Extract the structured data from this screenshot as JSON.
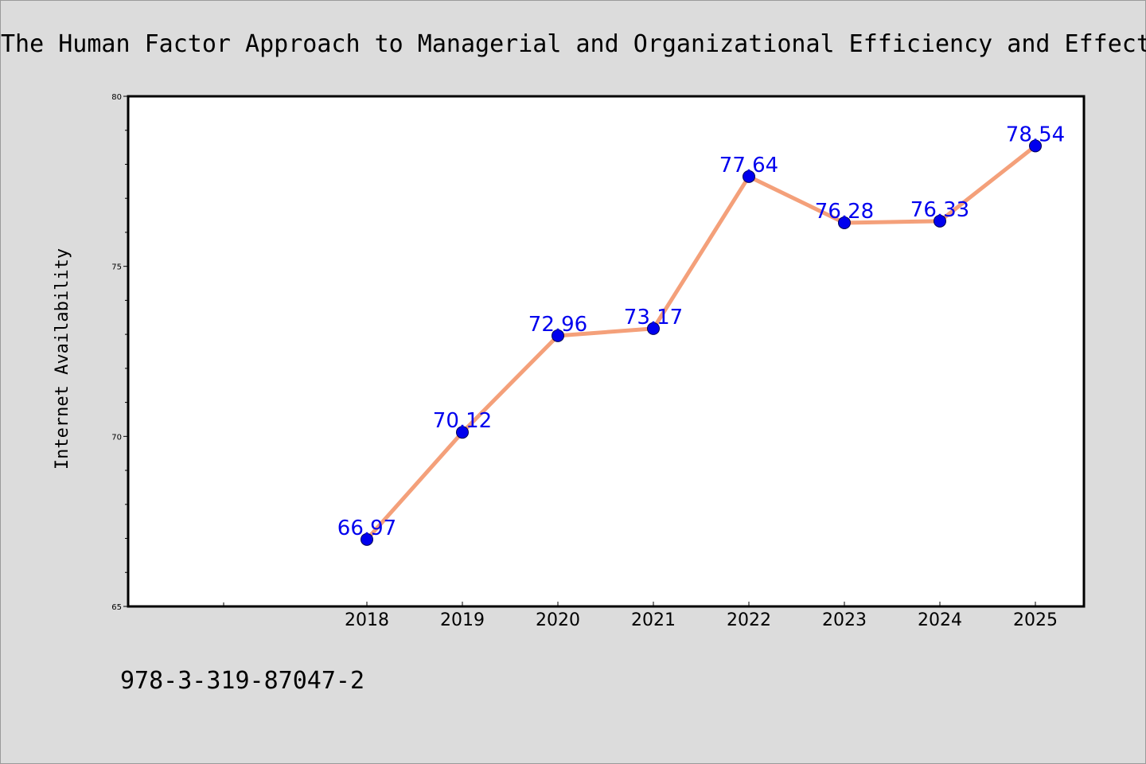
{
  "chart_data": {
    "type": "line",
    "title": "The Human Factor Approach to Managerial and Organizational Efficiency and Effectiveness",
    "xlabel": "",
    "ylabel": "Internet Availability",
    "categories": [
      "2018",
      "2019",
      "2020",
      "2021",
      "2022",
      "2023",
      "2024",
      "2025"
    ],
    "series": [
      {
        "values": [
          66.97,
          70.12,
          72.96,
          73.17,
          77.64,
          76.28,
          76.33,
          78.54
        ]
      }
    ],
    "data_labels": [
      "66.97",
      "70.12",
      "72.96",
      "73.17",
      "77.64",
      "76.28",
      "76.33",
      "78.54"
    ],
    "ylim": [
      65,
      80
    ],
    "yticks": [
      65,
      70,
      75,
      80
    ],
    "ytick_labels": [
      "65",
      "70",
      "75",
      "80"
    ],
    "y_minor_step": 1,
    "x_extra_ticks_left": 2,
    "grid": false,
    "legend": "none",
    "colors": {
      "line": "#f4a07a",
      "marker": "#0000ee",
      "label": "#0000ee",
      "background": "#dcdcdc",
      "plot_background": "#ffffff"
    }
  },
  "footer": {
    "isbn": "978-3-319-87047-2"
  }
}
